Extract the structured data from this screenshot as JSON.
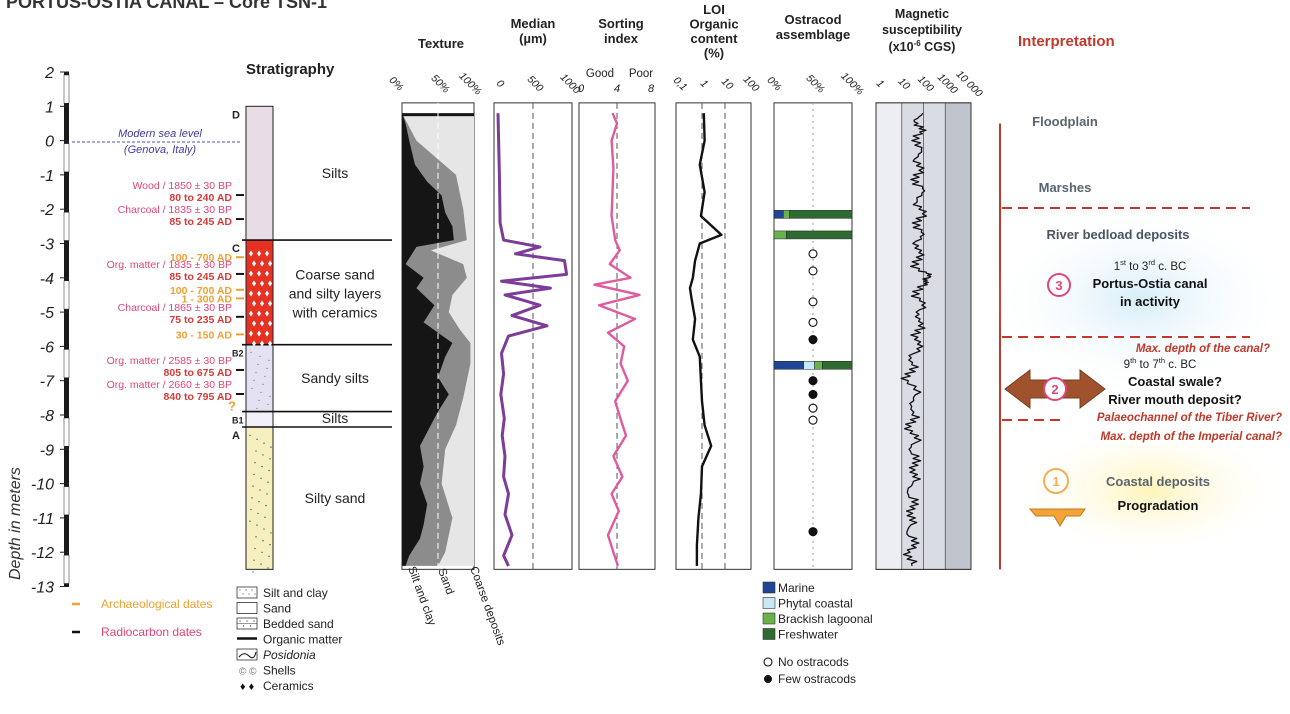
{
  "title": "PORTUS-OSTIA CANAL – Core TSN-1",
  "depth_axis": {
    "label": "Depth in meters",
    "ticks": [
      "2",
      "1",
      "0",
      "-1",
      "-2",
      "-3",
      "-4",
      "-5",
      "-6",
      "-7",
      "-8",
      "-9",
      "-10",
      "-11",
      "-12",
      "-13"
    ]
  },
  "sea_level": {
    "line1": "Modern sea level",
    "line2": "(Genova, Italy)"
  },
  "stratigraphy": {
    "title": "Stratigraphy",
    "units": [
      {
        "code": "D",
        "top": 1.0,
        "bottom": -2.9,
        "color": "#e8dde6",
        "label": "Silts"
      },
      {
        "code": "C",
        "top": -2.9,
        "bottom": -5.95,
        "color": "#e63222",
        "label": [
          "Coarse sand",
          "and silty layers",
          "with ceramics"
        ]
      },
      {
        "code": "B2",
        "top": -5.95,
        "bottom": -7.9,
        "color": "#e4e2f2",
        "label": "Sandy silts"
      },
      {
        "code": "B1",
        "top": -7.9,
        "bottom": -8.35,
        "color": "#f2f1fa",
        "label": "Silts"
      },
      {
        "code": "A",
        "top": -8.35,
        "bottom": -12.5,
        "color": "#f6f0c0",
        "label": "Silty sand"
      }
    ],
    "dates": [
      {
        "method": "Wood / 1850 ± 30 BP",
        "range": "80 to 240 AD",
        "depth": -1.5
      },
      {
        "method": "Charcoal / 1835 ± 30 BP",
        "range": "85 to 245 AD",
        "depth": -2.2
      },
      {
        "method": "",
        "range": "100 - 700 AD",
        "depth": -3.4,
        "kind": "archaeo"
      },
      {
        "method": "Org. matter / 1835 ± 30 BP",
        "range": "85 to 245 AD",
        "depth": -3.8
      },
      {
        "method": "",
        "range": "100 - 700 AD",
        "depth": -4.35,
        "kind": "archaeo"
      },
      {
        "method": "",
        "range": "1 - 300 AD",
        "depth": -4.6,
        "kind": "archaeo"
      },
      {
        "method": "Charcoal / 1865 ± 30 BP",
        "range": "75 to 235 AD",
        "depth": -5.05
      },
      {
        "method": "",
        "range": "30 - 150 AD",
        "depth": -5.65,
        "kind": "archaeo"
      },
      {
        "method": "Org. matter / 2585 ± 30 BP",
        "range": "805 to 675 AD",
        "depth": -6.6
      },
      {
        "method": "Org. matter / 2660 ± 30 BP",
        "range": "840 to 795 AD",
        "depth": -7.3
      }
    ],
    "question_mark": "?"
  },
  "columns": {
    "texture": {
      "title": "Texture",
      "ticks": [
        "0%",
        "50%",
        "100%"
      ],
      "bottom_labels": [
        "Silt and clay",
        "Sand",
        "Coarse deposits"
      ]
    },
    "median": {
      "title": [
        "Median",
        "(µm)"
      ],
      "ticks": [
        "0",
        "500",
        "1000"
      ]
    },
    "sorting": {
      "title": [
        "Sorting",
        "index"
      ],
      "ticks": [
        "0",
        "4",
        "8"
      ],
      "top_labels": [
        "Good",
        "Poor"
      ]
    },
    "loi": {
      "title": [
        "LOI",
        "Organic",
        "content",
        "(%)"
      ],
      "ticks": [
        "0,1",
        "1",
        "10",
        "100"
      ]
    },
    "ostracod": {
      "title": [
        "Ostracod",
        "assemblage"
      ],
      "ticks": [
        "0%",
        "50%",
        "100%"
      ]
    },
    "magnetic": {
      "title": [
        "Magnetic",
        "susceptibility",
        "(x10",
        "-6",
        " CGS)"
      ],
      "ticks": [
        "1",
        "10",
        "100",
        "1000",
        "10 000"
      ]
    }
  },
  "chart_data": {
    "type": "line",
    "depth_range": [
      2,
      -13
    ],
    "texture_silt_clay": [
      [
        0.8,
        0
      ],
      [
        0.5,
        0.05
      ],
      [
        0,
        0.1
      ],
      [
        -0.7,
        0.18
      ],
      [
        -1.2,
        0.35
      ],
      [
        -1.6,
        0.55
      ],
      [
        -2.1,
        0.6
      ],
      [
        -2.5,
        0.7
      ],
      [
        -2.9,
        0.72
      ],
      [
        -3.1,
        0.2
      ],
      [
        -3.6,
        0.05
      ],
      [
        -4.0,
        0.3
      ],
      [
        -4.3,
        0.2
      ],
      [
        -4.8,
        0.45
      ],
      [
        -5.3,
        0.3
      ],
      [
        -5.9,
        0.7
      ],
      [
        -6.3,
        0.6
      ],
      [
        -6.9,
        0.5
      ],
      [
        -7.4,
        0.65
      ],
      [
        -7.9,
        0.5
      ],
      [
        -8.3,
        0.4
      ],
      [
        -8.9,
        0.25
      ],
      [
        -9.5,
        0.3
      ],
      [
        -10.0,
        0.25
      ],
      [
        -10.6,
        0.35
      ],
      [
        -11.2,
        0.3
      ],
      [
        -11.6,
        0.25
      ],
      [
        -12.1,
        0.1
      ],
      [
        -12.4,
        0.05
      ]
    ],
    "texture_sand": [
      [
        0.8,
        0
      ],
      [
        0,
        0.2
      ],
      [
        -1.0,
        0.75
      ],
      [
        -2.0,
        0.85
      ],
      [
        -2.9,
        0.9
      ],
      [
        -3.2,
        0.4
      ],
      [
        -3.6,
        0.85
      ],
      [
        -4.0,
        0.9
      ],
      [
        -4.5,
        0.7
      ],
      [
        -5.0,
        0.65
      ],
      [
        -5.5,
        0.8
      ],
      [
        -5.9,
        0.95
      ],
      [
        -6.5,
        0.95
      ],
      [
        -7.5,
        0.85
      ],
      [
        -8.3,
        0.75
      ],
      [
        -9.0,
        0.6
      ],
      [
        -10.0,
        0.55
      ],
      [
        -11.0,
        0.7
      ],
      [
        -12.0,
        0.6
      ],
      [
        -12.4,
        0.5
      ]
    ],
    "median_um": [
      [
        0.8,
        0
      ],
      [
        -1.0,
        20
      ],
      [
        -2.4,
        30
      ],
      [
        -2.9,
        80
      ],
      [
        -3.1,
        600
      ],
      [
        -3.3,
        250
      ],
      [
        -3.5,
        950
      ],
      [
        -3.9,
        980
      ],
      [
        -4.1,
        50
      ],
      [
        -4.3,
        750
      ],
      [
        -4.5,
        100
      ],
      [
        -4.8,
        600
      ],
      [
        -5.1,
        200
      ],
      [
        -5.4,
        700
      ],
      [
        -5.7,
        150
      ],
      [
        -6.2,
        50
      ],
      [
        -6.8,
        80
      ],
      [
        -7.4,
        40
      ],
      [
        -8.1,
        90
      ],
      [
        -8.6,
        60
      ],
      [
        -9.2,
        100
      ],
      [
        -9.8,
        80
      ],
      [
        -10.3,
        150
      ],
      [
        -10.9,
        100
      ],
      [
        -11.5,
        200
      ],
      [
        -12.1,
        80
      ],
      [
        -12.4,
        150
      ]
    ],
    "sorting_index": [
      [
        0.8,
        3.5
      ],
      [
        0.5,
        4.0
      ],
      [
        0,
        3.4
      ],
      [
        -0.8,
        3.6
      ],
      [
        -1.5,
        3.5
      ],
      [
        -2.2,
        3.4
      ],
      [
        -2.9,
        3.8
      ],
      [
        -3.2,
        4.3
      ],
      [
        -3.6,
        3.2
      ],
      [
        -4.0,
        5.5
      ],
      [
        -4.2,
        1.5
      ],
      [
        -4.5,
        6.5
      ],
      [
        -4.8,
        2.0
      ],
      [
        -5.2,
        6.0
      ],
      [
        -5.6,
        3.0
      ],
      [
        -6.0,
        4.8
      ],
      [
        -6.5,
        4.4
      ],
      [
        -7.0,
        5.2
      ],
      [
        -7.6,
        3.8
      ],
      [
        -8.2,
        4.5
      ],
      [
        -8.6,
        5.0
      ],
      [
        -9.2,
        3.6
      ],
      [
        -9.8,
        4.6
      ],
      [
        -10.3,
        3.4
      ],
      [
        -10.8,
        4.2
      ],
      [
        -11.5,
        3.0
      ],
      [
        -12.0,
        3.6
      ],
      [
        -12.4,
        4.1
      ]
    ],
    "loi_pct": [
      [
        0.8,
        1.2
      ],
      [
        0,
        1.3
      ],
      [
        -0.7,
        0.8
      ],
      [
        -1.5,
        1.3
      ],
      [
        -2.2,
        0.9
      ],
      [
        -2.75,
        7.0
      ],
      [
        -3.0,
        0.8
      ],
      [
        -3.5,
        0.5
      ],
      [
        -4.0,
        0.4
      ],
      [
        -4.3,
        0.3
      ],
      [
        -4.6,
        0.35
      ],
      [
        -5.2,
        0.5
      ],
      [
        -5.8,
        0.4
      ],
      [
        -6.3,
        0.8
      ],
      [
        -7.0,
        0.9
      ],
      [
        -7.6,
        1.0
      ],
      [
        -8.3,
        1.3
      ],
      [
        -8.9,
        2.5
      ],
      [
        -9.5,
        1.0
      ],
      [
        -10.3,
        0.9
      ],
      [
        -11.0,
        0.7
      ],
      [
        -11.8,
        0.6
      ],
      [
        -12.4,
        0.6
      ]
    ],
    "ostracod_bars": [
      {
        "depth": -2.15,
        "segments": [
          {
            "type": "Marine",
            "pct": 12
          },
          {
            "type": "Brackish lagoonal",
            "pct": 8
          },
          {
            "type": "Freshwater",
            "pct": 80
          }
        ]
      },
      {
        "depth": -2.75,
        "segments": [
          {
            "type": "Brackish lagoonal",
            "pct": 16
          },
          {
            "type": "Freshwater",
            "pct": 84
          }
        ]
      },
      {
        "depth": -6.55,
        "segments": [
          {
            "type": "Marine",
            "pct": 38
          },
          {
            "type": "Phytal coastal",
            "pct": 14
          },
          {
            "type": "Brackish lagoonal",
            "pct": 10
          },
          {
            "type": "Freshwater",
            "pct": 38
          }
        ]
      }
    ],
    "ostracod_points": [
      {
        "depth": -3.3,
        "kind": "none"
      },
      {
        "depth": -3.8,
        "kind": "none"
      },
      {
        "depth": -4.7,
        "kind": "none"
      },
      {
        "depth": -5.3,
        "kind": "none"
      },
      {
        "depth": -5.8,
        "kind": "few"
      },
      {
        "depth": -7.0,
        "kind": "few"
      },
      {
        "depth": -7.4,
        "kind": "few"
      },
      {
        "depth": -7.8,
        "kind": "none"
      },
      {
        "depth": -8.15,
        "kind": "none"
      },
      {
        "depth": -11.4,
        "kind": "few"
      }
    ],
    "magnetic_cgs": [
      [
        0.8,
        60
      ],
      [
        0.5,
        50
      ],
      [
        0.2,
        70
      ],
      [
        -0.2,
        55
      ],
      [
        -0.6,
        65
      ],
      [
        -1.0,
        50
      ],
      [
        -1.4,
        70
      ],
      [
        -1.8,
        55
      ],
      [
        -2.2,
        80
      ],
      [
        -2.6,
        60
      ],
      [
        -3.0,
        65
      ],
      [
        -3.4,
        55
      ],
      [
        -3.8,
        60
      ],
      [
        -4.0,
        200
      ],
      [
        -4.2,
        70
      ],
      [
        -4.6,
        60
      ],
      [
        -5.0,
        80
      ],
      [
        -5.4,
        60
      ],
      [
        -5.8,
        55
      ],
      [
        -6.2,
        40
      ],
      [
        -6.6,
        25
      ],
      [
        -7.0,
        20
      ],
      [
        -7.5,
        45
      ],
      [
        -8.0,
        30
      ],
      [
        -8.4,
        25
      ],
      [
        -8.8,
        40
      ],
      [
        -9.2,
        30
      ],
      [
        -9.6,
        45
      ],
      [
        -10.0,
        30
      ],
      [
        -10.4,
        25
      ],
      [
        -10.8,
        35
      ],
      [
        -11.2,
        20
      ],
      [
        -11.6,
        30
      ],
      [
        -12.0,
        25
      ],
      [
        -12.4,
        30
      ]
    ]
  },
  "interpretation": {
    "title": "Interpretation",
    "floodplain": "Floodplain",
    "marshes": "Marshes",
    "bedload": "River bedload deposits",
    "phase3": {
      "num": "3",
      "period_sup1": "st",
      "period_sup2": "rd",
      "period": "1st to 3rd c. BC",
      "line1": "Portus-Ostia canal",
      "line2": "in activity"
    },
    "max_depth_canal": "Max. depth of the canal?",
    "phase2": {
      "num": "2",
      "period": "9th to 7th c. BC",
      "line1": "Coastal swale?",
      "line2": "River mouth deposit?"
    },
    "palaeochannel": "Palaeochannel of the Tiber River?",
    "max_depth_imperial": "Max. depth of the Imperial canal?",
    "phase1": {
      "num": "1",
      "line1": "Coastal deposits",
      "line2": "Progradation"
    }
  },
  "legend": {
    "dates": [
      {
        "label": "Archaeological dates",
        "color": "#f0a030"
      },
      {
        "label": "Radiocarbon dates",
        "color": "#e0457a"
      }
    ],
    "lithology": [
      "Silt and clay",
      "Sand",
      "Bedded sand",
      "Organic matter",
      "Posidonia",
      "Shells",
      "Ceramics"
    ],
    "ostracods": [
      {
        "label": "Marine",
        "color": "#1f4597"
      },
      {
        "label": "Phytal coastal",
        "color": "#c9e8f5"
      },
      {
        "label": "Brackish lagoonal",
        "color": "#6ab04c"
      },
      {
        "label": "Freshwater",
        "color": "#2e6b30"
      }
    ],
    "points": [
      {
        "label": "No ostracods"
      },
      {
        "label": "Few ostracods"
      }
    ]
  },
  "colors": {
    "median": "#7d3c98",
    "sorting": "#e05aa0",
    "interpretation": "#c0392b",
    "archaeo": "#f0a030",
    "radiocarbon": "#e0457a",
    "radiocarbon_range": "#d63a3a",
    "sea": "#3d3aa0"
  }
}
